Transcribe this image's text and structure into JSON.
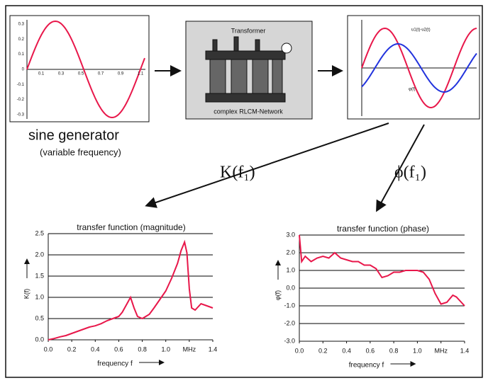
{
  "top": {
    "sine_label": "sine generator",
    "sine_sub": "(variable frequency)",
    "transformer": "Transformer",
    "network": "complex RLCM-Network",
    "scope_label": "u1(t)-u2(t)",
    "scope_phase": "φ(f)",
    "sine_yticks": [
      "0.3",
      "0.2",
      "0.1",
      "0",
      "-0.1",
      "-0.2",
      "-0.3"
    ],
    "sine_xticks": [
      "0.1",
      "0.3",
      "0.5",
      "0.7",
      "0.9",
      "1.1"
    ]
  },
  "arrows": {
    "magnitude": "K(f₁)",
    "phase": "ϕ(f₁)"
  },
  "charts": [
    {
      "type": "line",
      "title": "transfer function (magnitude)",
      "xlabel": "frequency f",
      "ylabel": "K(f)",
      "x": [
        0,
        0.05,
        0.1,
        0.15,
        0.2,
        0.25,
        0.3,
        0.35,
        0.4,
        0.45,
        0.5,
        0.55,
        0.6,
        0.63,
        0.66,
        0.7,
        0.73,
        0.76,
        0.8,
        0.83,
        0.86,
        0.9,
        0.95,
        1.0,
        1.05,
        1.1,
        1.13,
        1.16,
        1.18,
        1.2,
        1.22,
        1.25,
        1.3,
        1.35,
        1.4
      ],
      "series": [
        {
          "color": "#e8174a",
          "values": [
            0,
            0.03,
            0.07,
            0.1,
            0.15,
            0.2,
            0.25,
            0.3,
            0.33,
            0.38,
            0.45,
            0.5,
            0.55,
            0.65,
            0.8,
            1.0,
            0.75,
            0.55,
            0.5,
            0.55,
            0.6,
            0.75,
            0.95,
            1.15,
            1.45,
            1.8,
            2.1,
            2.3,
            2.05,
            1.2,
            0.75,
            0.7,
            0.85,
            0.8,
            0.75
          ]
        }
      ],
      "xlim": [
        0,
        1.4
      ],
      "ylim": [
        0,
        2.5
      ],
      "xticks": [
        {
          "value": 0,
          "label": "0.0"
        },
        0.2,
        0.4,
        0.6,
        0.8,
        {
          "value": 1,
          "label": "1.0"
        },
        {
          "value": 1.2,
          "label": "MHz"
        },
        1.4
      ],
      "yticks": [
        {
          "value": 0,
          "label": "0.0"
        },
        0.5,
        {
          "value": 1,
          "label": "1.0"
        },
        1.5,
        {
          "value": 2,
          "label": "2.0"
        },
        2.5
      ],
      "grid": true
    },
    {
      "type": "line",
      "title": "transfer function (phase)",
      "xlabel": "frequency f",
      "ylabel": "φ(f)",
      "x": [
        0,
        0.02,
        0.05,
        0.1,
        0.15,
        0.2,
        0.25,
        0.3,
        0.35,
        0.4,
        0.45,
        0.5,
        0.55,
        0.6,
        0.65,
        0.7,
        0.75,
        0.8,
        0.85,
        0.9,
        0.95,
        1.0,
        1.05,
        1.1,
        1.15,
        1.2,
        1.25,
        1.3,
        1.33,
        1.4
      ],
      "series": [
        {
          "color": "#e8174a",
          "values": [
            3.0,
            1.5,
            1.8,
            1.5,
            1.7,
            1.8,
            1.7,
            2.0,
            1.7,
            1.6,
            1.5,
            1.5,
            1.3,
            1.3,
            1.1,
            0.6,
            0.7,
            0.9,
            0.9,
            1.0,
            1.0,
            1.0,
            0.9,
            0.5,
            -0.3,
            -0.9,
            -0.8,
            -0.4,
            -0.5,
            -1.0
          ]
        }
      ],
      "xlim": [
        0,
        1.4
      ],
      "ylim": [
        -3,
        3
      ],
      "xticks": [
        {
          "value": 0,
          "label": "0.0"
        },
        0.2,
        0.4,
        0.6,
        0.8,
        {
          "value": 1,
          "label": "1.0"
        },
        {
          "value": 1.2,
          "label": "MHz"
        },
        1.4
      ],
      "yticks": [
        {
          "value": 3,
          "label": "3.0"
        },
        {
          "value": 2,
          "label": "2.0"
        },
        {
          "value": 1,
          "label": "1.0"
        },
        {
          "value": 0,
          "label": "0.0"
        },
        {
          "value": -1,
          "label": "-1.0"
        },
        {
          "value": -2,
          "label": "-2.0"
        },
        {
          "value": -3,
          "label": "-3.0"
        }
      ],
      "grid": true
    }
  ]
}
